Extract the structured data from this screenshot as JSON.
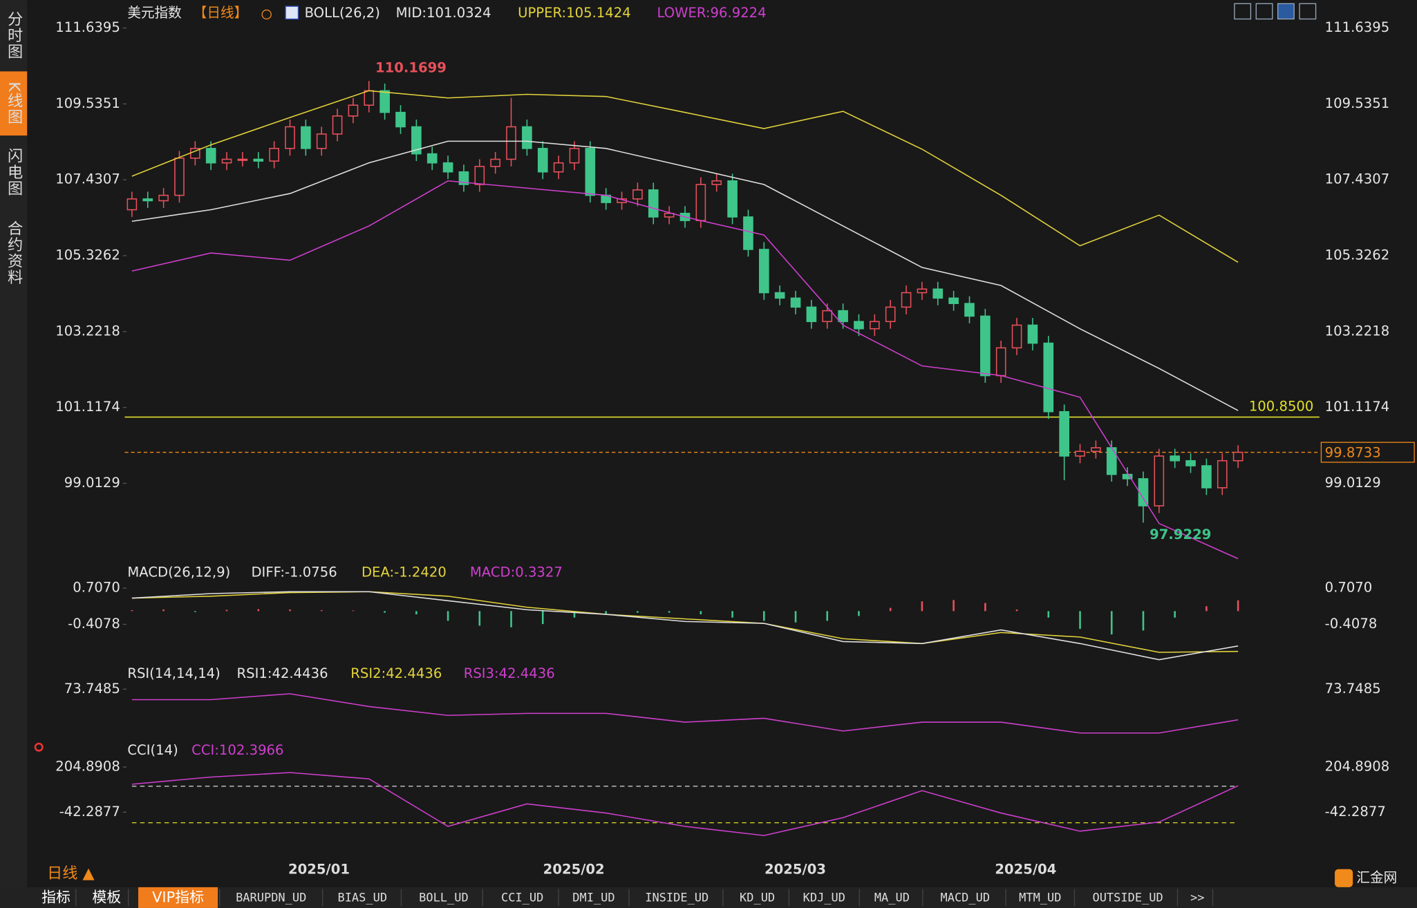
{
  "side_tabs": [
    "分时图",
    "K线图",
    "闪电图",
    "合约资料"
  ],
  "main": {
    "title": "美元指数",
    "period": "【日线】",
    "indicator": "BOLL(26,2)",
    "mid_label": "MID:101.0324",
    "upper_label": "UPPER:105.1424",
    "lower_label": "LOWER:96.9224",
    "ylim": [
      96.9,
      112
    ],
    "yticks": [
      111.6395,
      109.5351,
      107.4307,
      105.3262,
      103.2218,
      101.1174,
      99.0129
    ],
    "colors": {
      "up": "#e8505b",
      "down": "#3fc58a",
      "mid": "#e0e0e0",
      "upper": "#e3d33c",
      "lower": "#cf3fcf"
    },
    "candles": {
      "open": [
        106.6,
        106.9,
        106.85,
        107.0,
        108.03,
        108.3,
        107.9,
        108.0,
        108.0,
        107.95,
        108.3,
        108.9,
        108.3,
        108.7,
        109.2,
        109.5,
        109.9,
        109.3,
        108.9,
        108.15,
        107.9,
        107.65,
        107.3,
        107.8,
        108.0,
        108.9,
        108.3,
        107.65,
        107.9,
        108.3,
        107.0,
        106.8,
        106.9,
        107.15,
        106.4,
        106.5,
        106.3,
        107.3,
        107.4,
        106.4,
        105.5,
        104.3,
        104.15,
        103.9,
        103.5,
        103.8,
        103.5,
        103.3,
        103.5,
        103.9,
        104.3,
        104.4,
        104.15,
        104.0,
        103.65,
        102.0,
        102.77,
        103.4,
        102.9,
        101.0,
        99.77,
        99.9,
        100.0,
        99.26,
        99.14,
        98.39,
        99.77,
        99.64,
        99.5,
        98.89,
        99.64
      ],
      "high": [
        107.1,
        107.1,
        107.2,
        108.23,
        108.5,
        108.5,
        108.2,
        108.2,
        108.2,
        108.5,
        109.1,
        109.1,
        108.9,
        109.4,
        109.7,
        110.1699,
        110.1,
        109.5,
        109.1,
        108.35,
        108.1,
        107.85,
        108.0,
        108.2,
        109.7,
        109.1,
        108.5,
        108.1,
        108.5,
        108.5,
        107.2,
        107.1,
        107.35,
        107.35,
        106.7,
        106.7,
        107.5,
        107.6,
        107.6,
        106.6,
        105.7,
        104.5,
        104.35,
        104.1,
        104.0,
        104.0,
        103.7,
        103.7,
        104.1,
        104.5,
        104.6,
        104.6,
        104.35,
        104.2,
        103.85,
        102.97,
        103.6,
        103.6,
        103.1,
        101.2,
        100.1,
        100.2,
        100.2,
        99.46,
        99.34,
        99.97,
        99.97,
        99.84,
        99.7,
        99.84,
        100.07
      ],
      "low": [
        106.4,
        106.65,
        106.65,
        106.8,
        107.83,
        107.7,
        107.7,
        107.8,
        107.75,
        107.75,
        108.1,
        108.1,
        108.1,
        108.5,
        109.0,
        109.3,
        109.1,
        108.7,
        107.95,
        107.7,
        107.45,
        107.1,
        107.1,
        107.6,
        107.8,
        108.1,
        107.45,
        107.45,
        107.7,
        106.8,
        106.6,
        106.6,
        106.7,
        106.2,
        106.2,
        106.1,
        106.1,
        107.1,
        106.2,
        105.3,
        104.1,
        103.95,
        103.7,
        103.3,
        103.3,
        103.3,
        103.1,
        103.1,
        103.3,
        103.7,
        104.1,
        103.95,
        103.8,
        103.45,
        101.8,
        101.8,
        102.57,
        102.7,
        100.8,
        99.1,
        99.57,
        99.7,
        99.06,
        98.94,
        97.9229,
        98.19,
        99.44,
        99.3,
        98.69,
        98.69,
        99.44
      ],
      "close": [
        106.9,
        106.85,
        107.0,
        108.03,
        108.3,
        107.9,
        108.0,
        108.0,
        107.95,
        108.3,
        108.9,
        108.3,
        108.7,
        109.2,
        109.5,
        109.9,
        109.3,
        108.9,
        108.15,
        107.9,
        107.65,
        107.3,
        107.8,
        108.0,
        108.9,
        108.3,
        107.65,
        107.9,
        108.3,
        107.0,
        106.8,
        106.9,
        107.15,
        106.4,
        106.5,
        106.3,
        107.3,
        107.4,
        106.4,
        105.5,
        104.3,
        104.15,
        103.9,
        103.5,
        103.8,
        103.5,
        103.3,
        103.5,
        103.9,
        104.3,
        104.4,
        104.15,
        104.0,
        103.65,
        102.0,
        102.77,
        103.4,
        102.9,
        101.0,
        99.77,
        99.9,
        100.0,
        99.26,
        99.14,
        98.39,
        99.77,
        99.64,
        99.5,
        98.89,
        99.64,
        99.8733
      ]
    },
    "mid": [
      106.28,
      106.6,
      107.05,
      107.9,
      108.5,
      108.5,
      108.3,
      107.8,
      107.3,
      106.15,
      105.0,
      104.5,
      103.3,
      102.2,
      101.0324
    ],
    "upper": [
      107.53,
      108.4,
      109.16,
      109.9,
      109.7,
      109.8,
      109.74,
      109.3,
      108.85,
      109.33,
      108.28,
      107.0,
      105.6,
      106.45,
      105.1424
    ],
    "lower": [
      104.9,
      105.4,
      105.2,
      106.15,
      107.4,
      107.2,
      107.0,
      106.4,
      105.9,
      103.4,
      102.27,
      102.0,
      101.4,
      97.9,
      96.9224
    ],
    "hline": {
      "value": 100.85,
      "label": "100.8500"
    },
    "last": 99.8733
  },
  "macd": {
    "title": "MACD(26,12,9)",
    "diff_label": "DIFF:-1.0756",
    "dea_label": "DEA:-1.2420",
    "macd_label": "MACD:0.3327",
    "ylim": [
      -1.6,
      1.0
    ],
    "yticks": [
      {
        "value": 0.707,
        "label": "0.7070"
      },
      -0.4078
    ],
    "diff": [
      0.4,
      0.54,
      0.6,
      0.6,
      0.32,
      0.04,
      -0.1,
      -0.32,
      -0.38,
      -0.94,
      -1.0,
      -0.58,
      -1.0,
      -1.5,
      -1.0756
    ],
    "dea": [
      0.4,
      0.46,
      0.57,
      0.6,
      0.46,
      0.12,
      -0.1,
      -0.24,
      -0.38,
      -0.85,
      -1.0,
      -0.66,
      -0.8,
      -1.27,
      -1.242
    ],
    "hist": [
      0.03,
      0.05,
      -0.03,
      0.04,
      0.06,
      0.05,
      0.03,
      0.02,
      -0.05,
      -0.1,
      -0.3,
      -0.45,
      -0.5,
      -0.4,
      -0.2,
      -0.08,
      -0.05,
      -0.05,
      -0.1,
      -0.2,
      -0.3,
      -0.35,
      -0.3,
      -0.15,
      0.1,
      0.3,
      0.34,
      0.25,
      0.05,
      -0.2,
      -0.55,
      -0.72,
      -0.6,
      -0.2,
      0.15,
      0.3327
    ]
  },
  "rsi": {
    "title": "RSI(14,14,14)",
    "rsi1_label": "RSI1:42.4436",
    "rsi2_label": "RSI2:42.4436",
    "rsi3_label": "RSI3:42.4436",
    "ylim": [
      20,
      80
    ],
    "yticks": [
      73.7485
    ],
    "values": [
      63,
      63,
      69,
      56,
      47,
      49,
      49,
      40,
      44,
      31,
      40,
      40,
      29,
      29,
      42.4436
    ]
  },
  "cci": {
    "title": "CCI(14)",
    "cci_label": "CCI:102.3966",
    "ylim": [
      -300,
      250
    ],
    "yticks": [
      204.8908,
      -42.2877
    ],
    "levels": [
      100,
      -100
    ],
    "values": [
      111,
      150,
      175,
      140,
      -120,
      3,
      -47,
      -120,
      -170,
      -72,
      76,
      -47,
      -146,
      -96,
      102.3966
    ]
  },
  "dates": [
    "2025/01",
    "2025/02",
    "2025/03",
    "2025/04"
  ],
  "period_button": "日线 ▲",
  "bottom_tabs": [
    "指标",
    "模板",
    "VIP指标",
    "BARUPDN_UD",
    "BIAS_UD",
    "BOLL_UD",
    "CCI_UD",
    "DMI_UD",
    "INSIDE_UD",
    "KD_UD",
    "KDJ_UD",
    "MA_UD",
    "MACD_UD",
    "MTM_UD",
    "OUTSIDE_UD",
    ">>"
  ],
  "logo": "汇金网"
}
